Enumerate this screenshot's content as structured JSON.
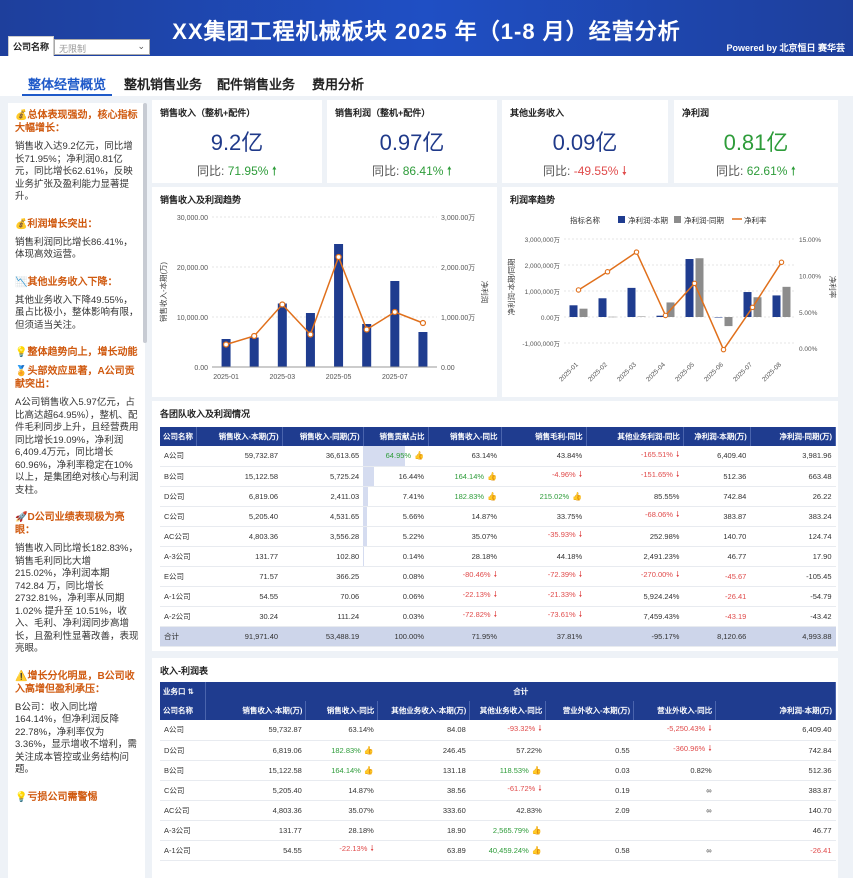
{
  "header": {
    "title": "XX集团工程机械板块 2025 年（1-8 月）经营分析",
    "powered": "Powered by 北京恒日 赛华芸",
    "filter_label": "公司名称",
    "filter_placeholder": "无限制"
  },
  "tabs": [
    "整体经营概览",
    "整机销售业务",
    "配件销售业务",
    "费用分析"
  ],
  "sidebar": [
    {
      "h": "💰总体表现强劲，核心指标大幅增长：",
      "p": "销售收入达9.2亿元，同比增长71.95%；净利润0.81亿元，同比增长62.61%，反映业务扩张及盈利能力显著提升。"
    },
    {
      "h": "💰利润增长突出：",
      "p": "销售利润同比增长86.41%，体现高效运营。"
    },
    {
      "h": "📉其他业务收入下降：",
      "p": "其他业务收入下降49.55%，虽占比极小，整体影响有限，但须适当关注。"
    },
    {
      "h": "💡整体趋势向上，增长动能",
      "p": ""
    },
    {
      "h": "🏅头部效应显著，A公司贡献突出：",
      "p": "A公司销售收入5.97亿元，占比高达超64.95%），整机、配件毛利同步上升，且经营费用同比增长19.09%，净利润6,409.4万元，同比增长60.96%，净利率稳定在10%以上，是集团绝对核心与利润支柱。"
    },
    {
      "h": "🚀D公司业绩表现极为亮眼：",
      "p": "销售收入同比增长182.83%，销售毛利同比大增 215.02%，净利润本期 742.84 万，同比增长2732.81%，净利率从同期1.02% 提升至 10.51%，收入、毛利、净利润同步高增长，且盈利性显著改善，表现亮眼。"
    },
    {
      "h": "⚠️增长分化明显，B公司收入高增但盈利承压：",
      "p": "B公司：收入同比增164.14%，但净利润反降22.78%，净利率仅为3.36%，显示增收不增利，需关注成本管控或业务结构问题。"
    },
    {
      "h": "💡亏损公司需警惕",
      "p": ""
    }
  ],
  "kpis": [
    {
      "title": "销售收入（整机+配件）",
      "value": "9.2亿",
      "yoy_label": "同比:",
      "yoy": "71.95%",
      "dir": "up"
    },
    {
      "title": "销售利润（整机+配件）",
      "value": "0.97亿",
      "yoy_label": "同比:",
      "yoy": "86.41%",
      "dir": "up"
    },
    {
      "title": "其他业务收入",
      "value": "0.09亿",
      "yoy_label": "同比:",
      "yoy": "-49.55%",
      "dir": "down"
    },
    {
      "title": "净利润",
      "value": "0.81亿",
      "yoy_label": "同比:",
      "yoy": "62.61%",
      "dir": "up"
    }
  ],
  "chart_data": [
    {
      "type": "bar",
      "title": "销售收入及利润趋势",
      "ylabel": "销售收入-本期(万)",
      "y2label": "净利润",
      "categories": [
        "2025-01",
        "2025-02",
        "2025-03",
        "2025-04",
        "2025-05",
        "2025-06",
        "2025-07",
        "2025-08"
      ],
      "x_tick_labels": [
        "2025-01",
        "2025-03",
        "2025-05",
        "2025-07"
      ],
      "y_ticks": [
        "30,000.00",
        "20,000.00",
        "10,000.00",
        "0.00"
      ],
      "y2_ticks": [
        "3,000.00万",
        "2,000.00万",
        "1,000.00万",
        "0.00"
      ],
      "ylim": [
        0,
        30000
      ],
      "y2lim": [
        0,
        3000
      ],
      "series": [
        {
          "name": "销售收入-本期(万)",
          "type": "bar",
          "values": [
            5600,
            5900,
            12700,
            10800,
            24600,
            8600,
            17200,
            7000
          ]
        },
        {
          "name": "净利润",
          "type": "line",
          "values": [
            450,
            620,
            1250,
            650,
            2200,
            750,
            1100,
            880
          ]
        }
      ]
    },
    {
      "type": "bar",
      "title": "利润率趋势",
      "legend_title": "指标名称",
      "legend": [
        "净利润-本期",
        "净利润-同期",
        "净利率"
      ],
      "ylabel": "净利润-本期/同期",
      "y2label": "净利率",
      "categories": [
        "2025-01",
        "2025-02",
        "2025-03",
        "2025-04",
        "2025-05",
        "2025-06",
        "2025-07",
        "2025-08"
      ],
      "y_ticks": [
        "3,000,000万",
        "2,000,000万",
        "1,000,000万",
        "0.00万",
        "-1,000,000万"
      ],
      "y2_ticks": [
        "15.00%",
        "10.00%",
        "5.00%",
        "0.00%"
      ],
      "ylim": [
        -1000000,
        3000000
      ],
      "y2lim": [
        0,
        15
      ],
      "series": [
        {
          "name": "净利润-本期",
          "values": [
            450000,
            720000,
            1120000,
            50000,
            2230000,
            -5000,
            960000,
            830000
          ]
        },
        {
          "name": "净利润-同期",
          "values": [
            320000,
            10000,
            20000,
            560000,
            2260000,
            -350000,
            760000,
            1160000
          ]
        },
        {
          "name": "净利率",
          "values": [
            8.0,
            10.5,
            13.2,
            4.5,
            8.9,
            -0.2,
            5.6,
            11.8
          ]
        }
      ]
    }
  ],
  "table1": {
    "title": "各团队收入及利润情况",
    "headers": [
      "公司名称",
      "销售收入-本期(万)",
      "销售收入-同期(万)",
      "销售贡献占比",
      "销售收入-同比",
      "销售毛利-同比",
      "其他业务利润-同比",
      "净利润-本期(万)",
      "净利润-同期(万)"
    ],
    "rows": [
      [
        "A公司",
        "59,732.87",
        "36,613.65",
        "64.95%",
        "63.14%",
        "43.84%",
        "-165.51%",
        "6,409.40",
        "3,981.96"
      ],
      [
        "B公司",
        "15,122.58",
        "5,725.24",
        "16.44%",
        "164.14%",
        "-4.96%",
        "-151.65%",
        "512.36",
        "663.48"
      ],
      [
        "D公司",
        "6,819.06",
        "2,411.03",
        "7.41%",
        "182.83%",
        "215.02%",
        "85.55%",
        "742.84",
        "26.22"
      ],
      [
        "C公司",
        "5,205.40",
        "4,531.65",
        "5.66%",
        "14.87%",
        "33.75%",
        "-68.06%",
        "383.87",
        "383.24"
      ],
      [
        "AC公司",
        "4,803.36",
        "3,556.28",
        "5.22%",
        "35.07%",
        "-35.93%",
        "252.98%",
        "140.70",
        "124.74"
      ],
      [
        "A-3公司",
        "131.77",
        "102.80",
        "0.14%",
        "28.18%",
        "44.18%",
        "2,491.23%",
        "46.77",
        "17.90"
      ],
      [
        "E公司",
        "71.57",
        "366.25",
        "0.08%",
        "-80.46%",
        "-72.39%",
        "-270.00%",
        "-45.67",
        "-105.45"
      ],
      [
        "A-1公司",
        "54.55",
        "70.06",
        "0.06%",
        "-22.13%",
        "-21.33%",
        "5,924.24%",
        "-26.41",
        "-54.79"
      ],
      [
        "A-2公司",
        "30.24",
        "111.24",
        "0.03%",
        "-72.82%",
        "-73.61%",
        "7,459.43%",
        "-43.19",
        "-43.42"
      ],
      [
        "合计",
        "91,971.40",
        "53,488.19",
        "100.00%",
        "71.95%",
        "37.81%",
        "-95.17%",
        "8,120.66",
        "4,993.88"
      ]
    ],
    "share_frac": [
      0.6495,
      0.1644,
      0.0741,
      0.0566,
      0.0522,
      0.0014,
      0.0008,
      0.0006,
      0.0003,
      1.0
    ]
  },
  "table2": {
    "title": "收入-利润表",
    "group1": "业务口",
    "group2": "合计",
    "headers": [
      "公司名称",
      "销售收入-本期(万)",
      "销售收入-同比",
      "其他业务收入-本期(万)",
      "其他业务收入-同比",
      "营业外收入-本期(万)",
      "营业外收入-同比",
      "净利润-本期(万)"
    ],
    "rows": [
      [
        "A公司",
        "59,732.87",
        "63.14%",
        "84.08",
        "-93.32%",
        "",
        "-5,250.43%",
        "6,409.40"
      ],
      [
        "D公司",
        "6,819.06",
        "182.83%",
        "246.45",
        "57.22%",
        "0.55",
        "-360.96%",
        "742.84"
      ],
      [
        "B公司",
        "15,122.58",
        "164.14%",
        "131.18",
        "118.53%",
        "0.03",
        "0.82%",
        "512.36"
      ],
      [
        "C公司",
        "5,205.40",
        "14.87%",
        "38.56",
        "-61.72%",
        "0.19",
        "∞",
        "383.87"
      ],
      [
        "AC公司",
        "4,803.36",
        "35.07%",
        "333.60",
        "42.83%",
        "2.09",
        "∞",
        "140.70"
      ],
      [
        "A-3公司",
        "131.77",
        "28.18%",
        "18.90",
        "2,565.79%",
        "",
        "",
        "46.77"
      ],
      [
        "A-1公司",
        "54.55",
        "-22.13%",
        "63.89",
        "40,459.24%",
        "0.58",
        "∞",
        "-26.41"
      ]
    ]
  },
  "colors": {
    "navy": "#1f3c8f",
    "gray": "#8c8c8c",
    "orange": "#e0701c",
    "green": "#2e9c3a",
    "red": "#e04b4b"
  }
}
